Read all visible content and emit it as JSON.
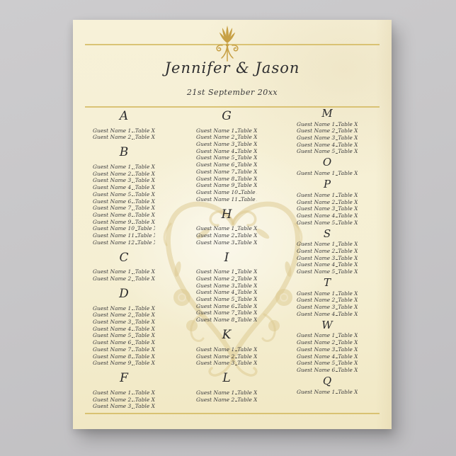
{
  "backdrop_color": "#c7c6c8",
  "poster": {
    "bg_color": "#f5efd3",
    "rule_gold": "#d5bb64",
    "ornament_gold": "#c7a045",
    "wreath_gold": "#dcc88d",
    "text_color": "#3b3b3d",
    "title": "Jennifer & Jason",
    "date": "21st September 20xx",
    "ornaments": {
      "top": "gold-palmette-flourish",
      "center": "gold-heart-vine-wreath"
    },
    "columns": [
      {
        "sections": [
          {
            "letter": "A",
            "entries": [
              {
                "name": "Guest Name 1",
                "table": "Table X"
              },
              {
                "name": "Guest Name 2",
                "table": "Table X"
              }
            ]
          },
          {
            "letter": "B",
            "entries": [
              {
                "name": "Guest Name 1",
                "table": "Table X"
              },
              {
                "name": "Guest Name 2",
                "table": "Table X"
              },
              {
                "name": "Guest Name 3",
                "table": "Table X"
              },
              {
                "name": "Guest Name 4",
                "table": "Table X"
              },
              {
                "name": "Guest Name 5",
                "table": "Table X"
              },
              {
                "name": "Guest Name 6",
                "table": "Table X"
              },
              {
                "name": "Guest Name 7",
                "table": "Table X"
              },
              {
                "name": "Guest Name 8",
                "table": "Table X"
              },
              {
                "name": "Guest Name 9",
                "table": "Table X"
              },
              {
                "name": "Guest Name 10",
                "table": "Table X"
              },
              {
                "name": "Guest Name 11",
                "table": "Table X"
              },
              {
                "name": "Guest Name 12",
                "table": "Table X"
              }
            ]
          },
          {
            "letter": "C",
            "entries": [
              {
                "name": "Guest Name 1",
                "table": "Table X"
              },
              {
                "name": "Guest Name 2",
                "table": "Table X"
              }
            ]
          },
          {
            "letter": "D",
            "entries": [
              {
                "name": "Guest Name 1",
                "table": "Table X"
              },
              {
                "name": "Guest Name 2",
                "table": "Table X"
              },
              {
                "name": "Guest Name 3",
                "table": "Table X"
              },
              {
                "name": "Guest Name 4",
                "table": "Table X"
              },
              {
                "name": "Guest Name 5",
                "table": "Table X"
              },
              {
                "name": "Guest Name 6",
                "table": "Table X"
              },
              {
                "name": "Guest Name 7",
                "table": "Table X"
              },
              {
                "name": "Guest Name 8",
                "table": "Table X"
              },
              {
                "name": "Guest Name 9",
                "table": "Table X"
              }
            ]
          },
          {
            "letter": "F",
            "entries": [
              {
                "name": "Guest Name 1",
                "table": "Table X"
              },
              {
                "name": "Guest Name 2",
                "table": "Table X"
              },
              {
                "name": "Guest Name 3",
                "table": "Table X"
              }
            ]
          }
        ]
      },
      {
        "sections": [
          {
            "letter": "G",
            "entries": [
              {
                "name": "Guest Name 1",
                "table": "Table X"
              },
              {
                "name": "Guest Name 2",
                "table": "Table X"
              },
              {
                "name": "Guest Name 3",
                "table": "Table X"
              },
              {
                "name": "Guest Name 4",
                "table": "Table X"
              },
              {
                "name": "Guest Name 5",
                "table": "Table X"
              },
              {
                "name": "Guest Name 6",
                "table": "Table X"
              },
              {
                "name": "Guest Name 7",
                "table": "Table X"
              },
              {
                "name": "Guest Name 8",
                "table": "Table X"
              },
              {
                "name": "Guest Name 9",
                "table": "Table X"
              },
              {
                "name": "Guest Name 10",
                "table": "Table X"
              },
              {
                "name": "Guest Name 11",
                "table": "Table X"
              }
            ]
          },
          {
            "letter": "H",
            "entries": [
              {
                "name": "Guest Name 1",
                "table": "Table X"
              },
              {
                "name": "Guest Name 2",
                "table": "Table X"
              },
              {
                "name": "Guest Name 3",
                "table": "Table X"
              }
            ]
          },
          {
            "letter": "I",
            "entries": [
              {
                "name": "Guest Name 1",
                "table": "Table X"
              },
              {
                "name": "Guest Name 2",
                "table": "Table X"
              },
              {
                "name": "Guest Name 3",
                "table": "Table X"
              },
              {
                "name": "Guest Name 4",
                "table": "Table X"
              },
              {
                "name": "Guest Name 5",
                "table": "Table X"
              },
              {
                "name": "Guest Name 6",
                "table": "Table X"
              },
              {
                "name": "Guest Name 7",
                "table": "Table X"
              },
              {
                "name": "Guest Name 8",
                "table": "Table X"
              }
            ]
          },
          {
            "letter": "K",
            "entries": [
              {
                "name": "Guest Name 1",
                "table": "Table X"
              },
              {
                "name": "Guest Name 2",
                "table": "Table X"
              },
              {
                "name": "Guest Name 3",
                "table": "Table X"
              }
            ]
          },
          {
            "letter": "L",
            "entries": [
              {
                "name": "Guest Name 1",
                "table": "Table X"
              },
              {
                "name": "Guest Name 2",
                "table": "Table X"
              }
            ]
          }
        ]
      },
      {
        "sections": [
          {
            "letter": "M",
            "entries": [
              {
                "name": "Guest Name 1",
                "table": "Table X"
              },
              {
                "name": "Guest Name 2",
                "table": "Table X"
              },
              {
                "name": "Guest Name 3",
                "table": "Table X"
              },
              {
                "name": "Guest Name 4",
                "table": "Table X"
              },
              {
                "name": "Guest Name 5",
                "table": "Table X"
              }
            ]
          },
          {
            "letter": "O",
            "entries": [
              {
                "name": "Guest Name 1",
                "table": "Table X"
              }
            ]
          },
          {
            "letter": "P",
            "entries": [
              {
                "name": "Guest Name 1",
                "table": "Table X"
              },
              {
                "name": "Guest Name 2",
                "table": "Table X"
              },
              {
                "name": "Guest Name 3",
                "table": "Table X"
              },
              {
                "name": "Guest Name 4",
                "table": "Table X"
              },
              {
                "name": "Guest Name 5",
                "table": "Table X"
              }
            ]
          },
          {
            "letter": "S",
            "entries": [
              {
                "name": "Guest Name 1",
                "table": "Table X"
              },
              {
                "name": "Guest Name 2",
                "table": "Table X"
              },
              {
                "name": "Guest Name 3",
                "table": "Table X"
              },
              {
                "name": "Guest Name 4",
                "table": "Table X"
              },
              {
                "name": "Guest Name 5",
                "table": "Table X"
              }
            ]
          },
          {
            "letter": "T",
            "entries": [
              {
                "name": "Guest Name 1",
                "table": "Table X"
              },
              {
                "name": "Guest Name 2",
                "table": "Table X"
              },
              {
                "name": "Guest Name 3",
                "table": "Table X"
              },
              {
                "name": "Guest Name 4",
                "table": "Table X"
              }
            ]
          },
          {
            "letter": "W",
            "entries": [
              {
                "name": "Guest Name 1",
                "table": "Table X"
              },
              {
                "name": "Guest Name 2",
                "table": "Table X"
              },
              {
                "name": "Guest Name 3",
                "table": "Table X"
              },
              {
                "name": "Guest Name 4",
                "table": "Table X"
              },
              {
                "name": "Guest Name 5",
                "table": "Table X"
              },
              {
                "name": "Guest Name 6",
                "table": "Table X"
              }
            ]
          },
          {
            "letter": "Q",
            "entries": [
              {
                "name": "Guest Name 1",
                "table": "Table X"
              }
            ]
          }
        ]
      }
    ]
  }
}
